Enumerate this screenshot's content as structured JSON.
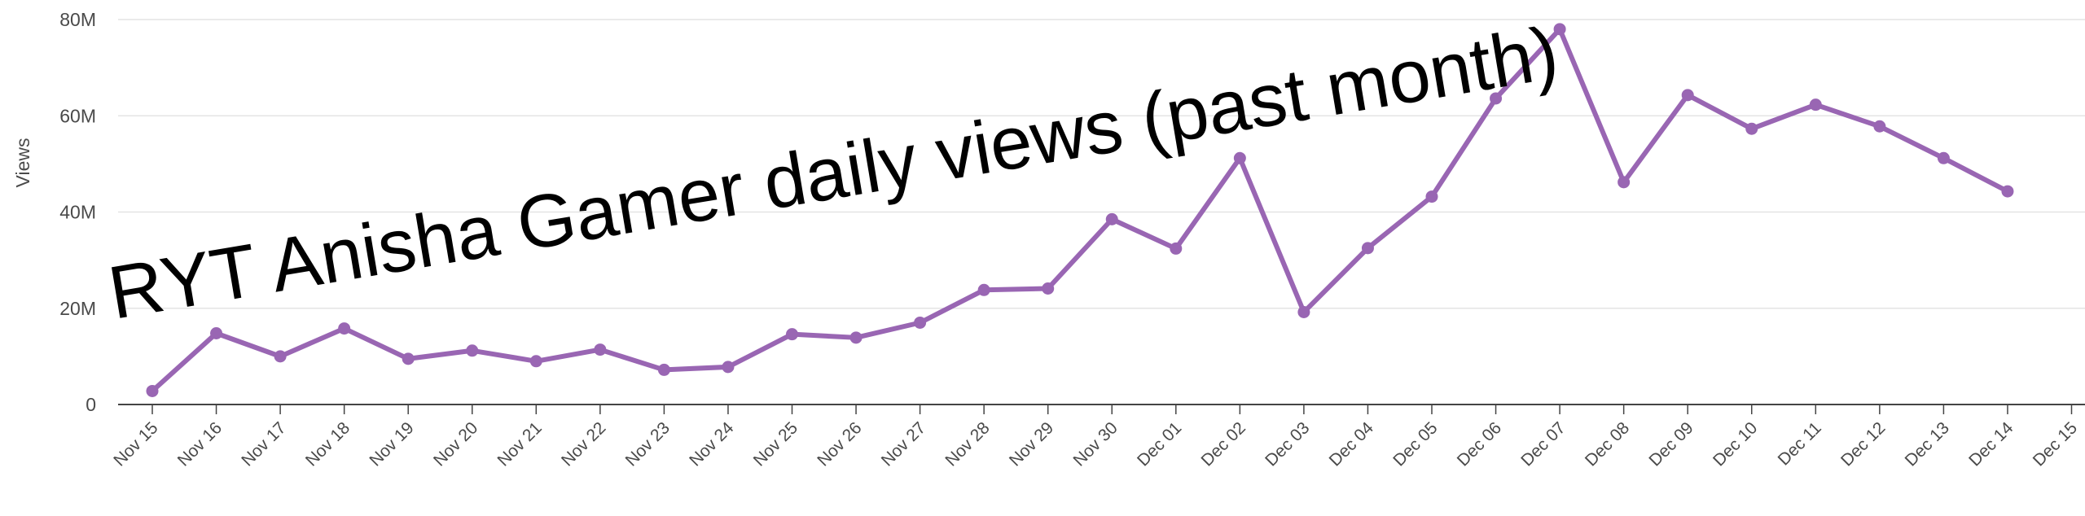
{
  "chart_data": {
    "type": "line",
    "title": "RYT Anisha Gamer daily views (past month)",
    "xlabel": "",
    "ylabel": "Views",
    "ylim": [
      0,
      80000000
    ],
    "yticks": [
      {
        "value": 0,
        "label": "0"
      },
      {
        "value": 20000000,
        "label": "20M"
      },
      {
        "value": 40000000,
        "label": "40M"
      },
      {
        "value": 60000000,
        "label": "60M"
      },
      {
        "value": 80000000,
        "label": "80M"
      }
    ],
    "grid": true,
    "legend": "none",
    "color": "#9966b3",
    "categories": [
      "Nov 15",
      "Nov 16",
      "Nov 17",
      "Nov 18",
      "Nov 19",
      "Nov 20",
      "Nov 21",
      "Nov 22",
      "Nov 23",
      "Nov 24",
      "Nov 25",
      "Nov 26",
      "Nov 27",
      "Nov 28",
      "Nov 29",
      "Nov 30",
      "Dec 01",
      "Dec 02",
      "Dec 03",
      "Dec 04",
      "Dec 05",
      "Dec 06",
      "Dec 07",
      "Dec 08",
      "Dec 09",
      "Dec 10",
      "Dec 11",
      "Dec 12",
      "Dec 13",
      "Dec 14",
      "Dec 15"
    ],
    "series": [
      {
        "values": [
          2800000,
          14800000,
          10000000,
          15800000,
          9500000,
          11200000,
          9000000,
          11400000,
          7200000,
          7800000,
          14600000,
          13900000,
          17000000,
          23800000,
          24100000,
          38500000,
          32400000,
          51200000,
          19200000,
          32500000,
          43200000,
          63600000,
          78000000,
          46200000,
          64300000,
          57300000,
          62300000,
          57800000,
          51200000,
          44300000,
          null
        ]
      }
    ]
  }
}
